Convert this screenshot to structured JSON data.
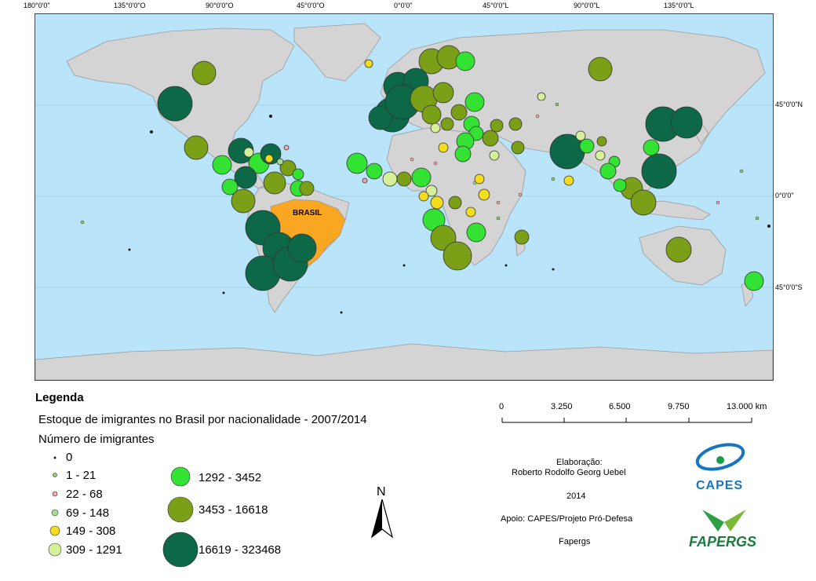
{
  "graticule": {
    "top_labels": [
      "180°0'0\"",
      "135°0'0\"O",
      "90°0'0\"O",
      "45°0'0\"O",
      "0°0'0\"",
      "45°0'0\"L",
      "90°0'0\"L",
      "135°0'0\"L"
    ],
    "right_labels": [
      "45°0'0\"N",
      "0°0'0\"",
      "45°0'0\"S"
    ]
  },
  "map": {
    "highlight_country": "BRASIL",
    "colors": {
      "ocean": "#b9e4f9",
      "land": "#d4d4d4",
      "brazil": "#f9a622",
      "border": "#9a9a9a"
    }
  },
  "legend": {
    "title": "Legenda",
    "subtitle": "Estoque de imigrantes no Brasil por nacionalidade - 2007/2014",
    "count_label": "Número de imigrantes",
    "classes": [
      {
        "label": "0",
        "color": "#1b1b1b"
      },
      {
        "label": "1 - 21",
        "color": "#8fd16a"
      },
      {
        "label": "22 - 68",
        "color": "#f0a8a8"
      },
      {
        "label": "69 - 148",
        "color": "#a6d99a"
      },
      {
        "label": "149 - 308",
        "color": "#f3dc1c"
      },
      {
        "label": "309 - 1291",
        "color": "#d6ef9a"
      },
      {
        "label": "1292 - 3452",
        "color": "#33e233"
      },
      {
        "label": "3453 - 16618",
        "color": "#7c9f18"
      },
      {
        "label": "16619 - 323468",
        "color": "#0d6848"
      }
    ]
  },
  "scale_bar": {
    "labels": [
      "0",
      "3.250",
      "6.500",
      "9.750",
      "13.000 km"
    ]
  },
  "credits": {
    "line1": "Elaboração:",
    "line2": "Roberto Rodolfo Georg Uebel",
    "year": "2014",
    "support": "Apoio: CAPES/Projeto Pró-Defesa",
    "fapergs": "Fapergs"
  },
  "logos": {
    "capes_text": "CAPES",
    "fapergs_text": "FAPERGS",
    "north_letter": "N"
  }
}
